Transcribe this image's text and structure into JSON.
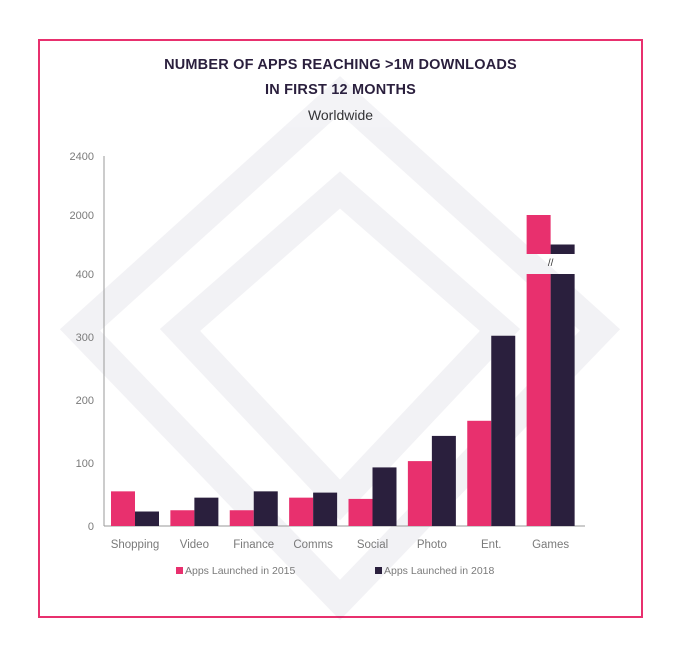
{
  "colors": {
    "s2015": "#e8306e",
    "s2018": "#2a1f3d",
    "frame": "#e8306e",
    "axis": "#999999"
  },
  "chart_data": {
    "type": "bar",
    "title": "NUMBER OF APPS REACHING >1M DOWNLOADS",
    "title_line2": "IN FIRST 12 MONTHS",
    "subtitle": "Worldwide",
    "categories": [
      "Shopping",
      "Video",
      "Finance",
      "Comms",
      "Social",
      "Photo",
      "Ent.",
      "Games"
    ],
    "series": [
      {
        "name": "Apps Launched in 2015",
        "values": [
          55,
          25,
          25,
          45,
          43,
          103,
          167,
          2000
        ]
      },
      {
        "name": "Apps Launched in 2018",
        "values": [
          23,
          45,
          55,
          53,
          93,
          143,
          302,
          1800
        ]
      }
    ],
    "lower_ticks": [
      0,
      100,
      200,
      300,
      400
    ],
    "upper_ticks": [
      2000,
      2400
    ],
    "ylim_lower": [
      0,
      400
    ],
    "ylim_upper": [
      1600,
      2400
    ],
    "axis_break_label": "//",
    "grid": false,
    "legend_position": "bottom"
  }
}
